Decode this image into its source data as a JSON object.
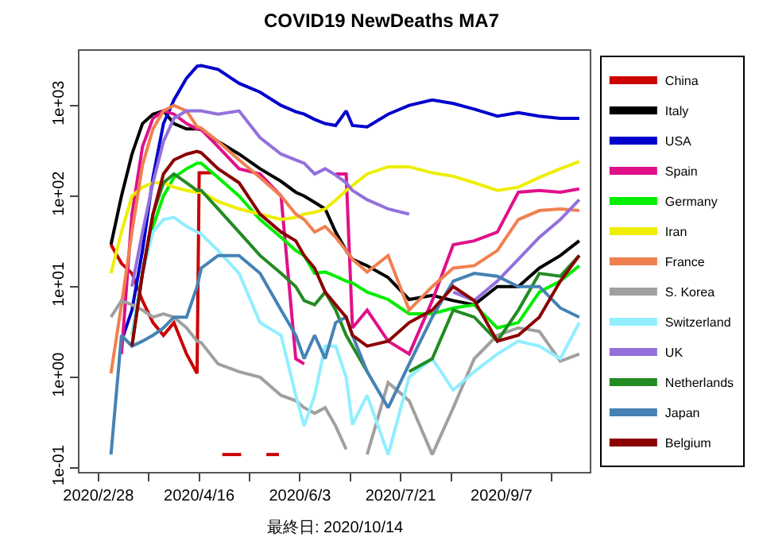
{
  "chart_data": {
    "type": "line",
    "title": "COVID19 NewDeaths MA7",
    "x": [
      "2020-03-05",
      "2020-03-10",
      "2020-03-15",
      "2020-03-20",
      "2020-03-25",
      "2020-03-30",
      "2020-04-04",
      "2020-04-10",
      "2020-04-15",
      "2020-04-17",
      "2020-04-25",
      "2020-05-05",
      "2020-05-15",
      "2020-05-25",
      "2020-06-01",
      "2020-06-05",
      "2020-06-10",
      "2020-06-15",
      "2020-06-20",
      "2020-06-25",
      "2020-06-28",
      "2020-07-05",
      "2020-07-15",
      "2020-07-25",
      "2020-08-05",
      "2020-08-15",
      "2020-08-25",
      "2020-09-05",
      "2020-09-15",
      "2020-09-25",
      "2020-10-05",
      "2020-10-14"
    ],
    "series": [
      {
        "name": "China",
        "color": "#cc0000",
        "x": [
          "2020-03-05",
          "2020-03-10",
          "2020-03-15",
          "2020-03-20",
          "2020-03-25",
          "2020-03-30",
          "2020-04-04",
          "2020-04-10",
          "2020-04-15",
          "2020-04-16",
          "2020-04-22",
          "2020-04-24",
          "2020-04-27",
          "2020-05-06",
          "2020-05-10",
          "2020-05-18",
          "2020-05-24"
        ],
        "values": [
          29,
          18,
          14,
          7,
          4,
          2.9,
          4,
          1.8,
          1.1,
          180,
          180,
          null,
          0.14,
          0.14,
          null,
          0.14,
          0.14
        ]
      },
      {
        "name": "Italy",
        "color": "#000000",
        "values": [
          29,
          100,
          290,
          630,
          800,
          870,
          630,
          550,
          550,
          540,
          400,
          290,
          200,
          145,
          110,
          100,
          85,
          72,
          40,
          25,
          20,
          17,
          12.6,
          7.2,
          8,
          7,
          6.3,
          10,
          10,
          16,
          22,
          32
        ]
      },
      {
        "name": "USA",
        "color": "#0000cc",
        "values": [
          null,
          2.5,
          5.5,
          25,
          160,
          630,
          1150,
          2000,
          2700,
          2750,
          2500,
          1750,
          1400,
          1000,
          850,
          800,
          700,
          630,
          600,
          870,
          600,
          580,
          800,
          1000,
          1150,
          1050,
          910,
          760,
          830,
          760,
          720,
          720
        ]
      },
      {
        "name": "Spain",
        "color": "#e0108a",
        "values": [
          null,
          1.8,
          63,
          350,
          720,
          870,
          800,
          630,
          550,
          540,
          350,
          200,
          175,
          100,
          1.6,
          1.4,
          null,
          null,
          175,
          175,
          3.5,
          5.5,
          2.5,
          1.8,
          7,
          29,
          32,
          40,
          110,
          115,
          110,
          120
        ]
      },
      {
        "name": "Germany",
        "color": "#00ee00",
        "values": [
          null,
          null,
          2.9,
          14,
          46,
          100,
          160,
          200,
          230,
          230,
          160,
          100,
          55,
          35,
          25,
          22,
          14,
          14.5,
          13,
          11.5,
          11,
          8.7,
          7.2,
          5,
          5,
          5.8,
          6.3,
          3.5,
          4,
          8.7,
          11.5,
          17
        ]
      },
      {
        "name": "Iran",
        "color": "#eeee00",
        "values": [
          14,
          40,
          100,
          125,
          140,
          140,
          125,
          115,
          110,
          110,
          87,
          72,
          63,
          55,
          58,
          63,
          66,
          72,
          90,
          115,
          130,
          175,
          210,
          210,
          180,
          165,
          140,
          115,
          125,
          160,
          200,
          240
        ]
      },
      {
        "name": "France",
        "color": "#f08050",
        "values": [
          1.1,
          6.3,
          40,
          220,
          550,
          870,
          1000,
          870,
          580,
          560,
          400,
          250,
          160,
          100,
          63,
          55,
          40,
          46,
          35,
          25,
          20,
          14.5,
          22,
          5.5,
          10,
          16,
          17,
          25,
          55,
          69,
          72,
          69
        ]
      },
      {
        "name": "S. Korea",
        "color": "#a0a0a0",
        "values": [
          4.6,
          7,
          6.3,
          5.5,
          4.6,
          5,
          4.6,
          3.5,
          2.5,
          2.4,
          1.4,
          1.15,
          1,
          0.63,
          0.55,
          0.46,
          0.4,
          0.46,
          0.29,
          0.16,
          null,
          0.14,
          0.87,
          0.55,
          0.14,
          0.46,
          1.6,
          2.9,
          3.5,
          3.2,
          1.5,
          1.8
        ]
      },
      {
        "name": "Switzerland",
        "color": "#90eeff",
        "values": [
          null,
          null,
          2.9,
          14,
          40,
          55,
          58,
          46,
          40,
          38,
          25,
          14,
          4,
          2.9,
          0.63,
          0.29,
          0.63,
          2.2,
          2.2,
          1,
          0.3,
          0.63,
          0.14,
          1,
          1.6,
          0.72,
          1.15,
          1.8,
          2.5,
          2.2,
          1.6,
          4
        ]
      },
      {
        "name": "UK",
        "color": "#9370db",
        "values": [
          null,
          null,
          10,
          40,
          140,
          400,
          720,
          870,
          870,
          870,
          800,
          870,
          440,
          290,
          250,
          230,
          175,
          200,
          170,
          140,
          115,
          91,
          72,
          63,
          null,
          8.7,
          7,
          11.5,
          20,
          35,
          55,
          91
        ]
      },
      {
        "name": "Netherlands",
        "color": "#228b22",
        "values": [
          null,
          null,
          2.2,
          14,
          63,
          140,
          175,
          140,
          115,
          115,
          72,
          40,
          22,
          14,
          10,
          7,
          6.3,
          8.7,
          5.5,
          2.9,
          2.2,
          1.15,
          null,
          1.15,
          1.6,
          5.5,
          4.6,
          2.5,
          5.5,
          14,
          13,
          22
        ]
      },
      {
        "name": "Japan",
        "color": "#4682b4",
        "values": [
          0.14,
          2.9,
          2.2,
          2.5,
          2.9,
          3.5,
          4.6,
          4.6,
          10,
          16,
          22,
          22,
          14,
          5.5,
          2.9,
          1.6,
          2.9,
          1.6,
          4,
          4.6,
          2.9,
          1.15,
          0.46,
          1.4,
          4.6,
          11.5,
          14,
          13,
          10,
          10,
          5.8,
          4.6
        ]
      },
      {
        "name": "Belgium",
        "color": "#8b0000",
        "values": [
          null,
          null,
          2.2,
          14,
          63,
          175,
          250,
          290,
          310,
          300,
          200,
          140,
          63,
          40,
          32,
          22,
          16,
          8.7,
          6.3,
          4.6,
          2.9,
          2.2,
          2.5,
          4,
          5.5,
          10,
          7,
          2.5,
          2.9,
          4.6,
          11.5,
          22
        ]
      }
    ],
    "log": "y",
    "xlim": [
      "2020-02-19",
      "2020-10-19"
    ],
    "xticks": [
      {
        "value": "2020-02-28",
        "label": "2020/2/28"
      },
      {
        "value": "2020-03-23",
        "label": null
      },
      {
        "value": "2020-04-16",
        "label": "2020/4/16"
      },
      {
        "value": "2020-05-10",
        "label": null
      },
      {
        "value": "2020-06-03",
        "label": "2020/6/3"
      },
      {
        "value": "2020-06-27",
        "label": null
      },
      {
        "value": "2020-07-21",
        "label": "2020/7/21"
      },
      {
        "value": "2020-08-14",
        "label": null
      },
      {
        "value": "2020-09-07",
        "label": "2020/9/7"
      },
      {
        "value": "2020-10-01",
        "label": null
      }
    ],
    "ylim": [
      0.09,
      4000
    ],
    "yticks": [
      {
        "value": 0.1,
        "label": "1e-01"
      },
      {
        "value": 1,
        "label": "1e+00"
      },
      {
        "value": 10,
        "label": "1e+01"
      },
      {
        "value": 100,
        "label": "1e+02"
      },
      {
        "value": 1000,
        "label": "1e+03"
      }
    ],
    "grid": false,
    "legend": "right",
    "marker": "none",
    "line_style": "solid",
    "annotations": [
      "最終日: 2020/10/14"
    ]
  }
}
